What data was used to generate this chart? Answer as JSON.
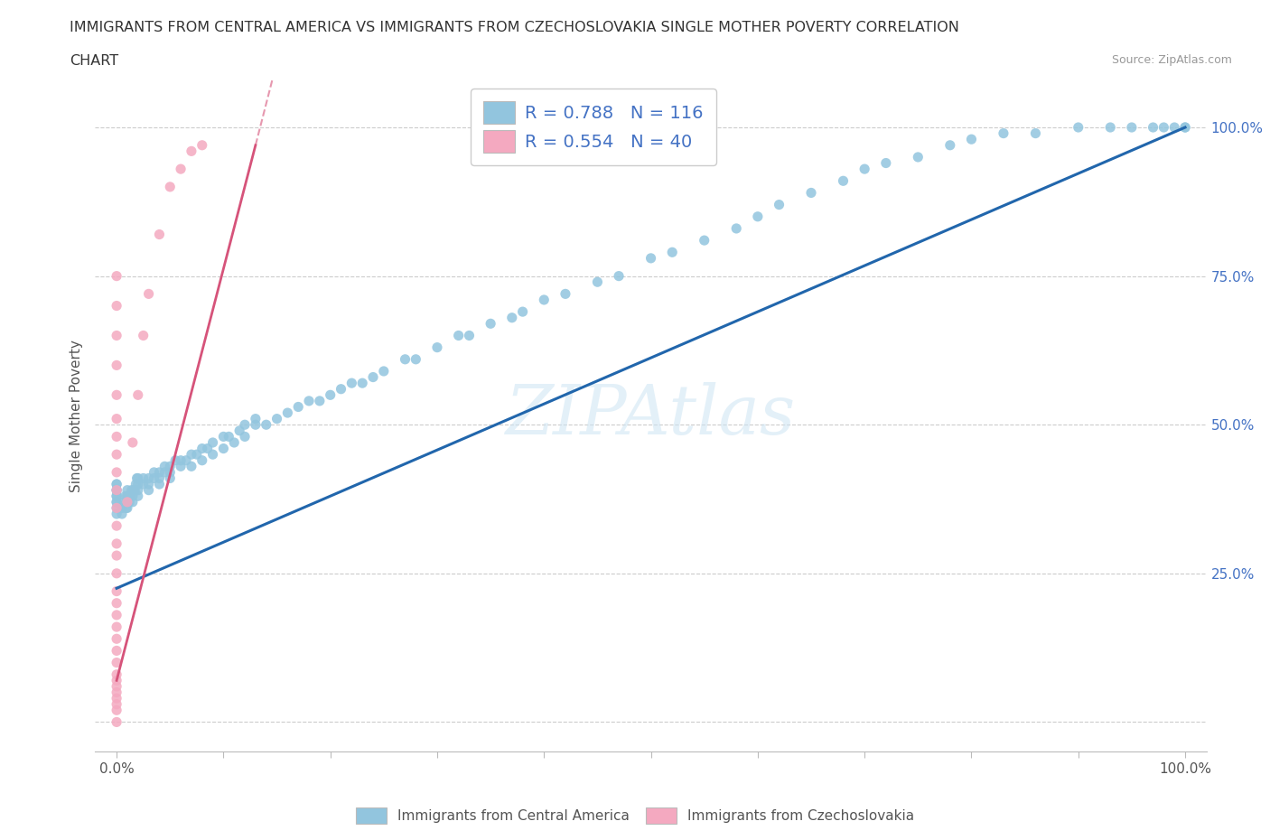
{
  "title_line1": "IMMIGRANTS FROM CENTRAL AMERICA VS IMMIGRANTS FROM CZECHOSLOVAKIA SINGLE MOTHER POVERTY CORRELATION",
  "title_line2": "CHART",
  "source": "Source: ZipAtlas.com",
  "ylabel": "Single Mother Poverty",
  "xlim": [
    -0.02,
    1.02
  ],
  "ylim": [
    -0.05,
    1.08
  ],
  "blue_color": "#92c5de",
  "pink_color": "#f4a9c0",
  "blue_line_color": "#2166ac",
  "pink_line_color": "#d6537a",
  "R_blue": 0.788,
  "N_blue": 116,
  "R_pink": 0.554,
  "N_pink": 40,
  "legend_label_blue": "Immigrants from Central America",
  "legend_label_pink": "Immigrants from Czechoslovakia",
  "watermark": "ZIPAtlas",
  "title_fontsize": 11.5,
  "axis_fontsize": 11,
  "tick_fontsize": 11,
  "blue_line_x0": 0.0,
  "blue_line_y0": 0.225,
  "blue_line_x1": 1.0,
  "blue_line_y1": 1.0,
  "pink_line_x0": 0.0,
  "pink_line_y0": 0.07,
  "pink_line_x1": 0.13,
  "pink_line_y1": 0.97,
  "blue_x": [
    0.0,
    0.0,
    0.0,
    0.0,
    0.0,
    0.0,
    0.0,
    0.0,
    0.0,
    0.0,
    0.005,
    0.005,
    0.007,
    0.008,
    0.009,
    0.01,
    0.01,
    0.01,
    0.01,
    0.01,
    0.012,
    0.013,
    0.014,
    0.015,
    0.015,
    0.016,
    0.017,
    0.018,
    0.019,
    0.02,
    0.02,
    0.02,
    0.02,
    0.025,
    0.025,
    0.03,
    0.03,
    0.03,
    0.035,
    0.035,
    0.04,
    0.04,
    0.04,
    0.045,
    0.045,
    0.05,
    0.05,
    0.05,
    0.055,
    0.06,
    0.06,
    0.065,
    0.07,
    0.07,
    0.075,
    0.08,
    0.08,
    0.085,
    0.09,
    0.09,
    0.1,
    0.1,
    0.105,
    0.11,
    0.115,
    0.12,
    0.12,
    0.13,
    0.13,
    0.14,
    0.15,
    0.16,
    0.17,
    0.18,
    0.19,
    0.2,
    0.21,
    0.22,
    0.23,
    0.24,
    0.25,
    0.27,
    0.28,
    0.3,
    0.32,
    0.33,
    0.35,
    0.37,
    0.38,
    0.4,
    0.42,
    0.45,
    0.47,
    0.5,
    0.52,
    0.55,
    0.58,
    0.6,
    0.62,
    0.65,
    0.68,
    0.7,
    0.72,
    0.75,
    0.78,
    0.8,
    0.83,
    0.86,
    0.9,
    0.93,
    0.95,
    0.97,
    0.98,
    0.99,
    1.0,
    1.0
  ],
  "blue_y": [
    0.35,
    0.36,
    0.37,
    0.37,
    0.38,
    0.38,
    0.39,
    0.39,
    0.4,
    0.4,
    0.35,
    0.36,
    0.37,
    0.38,
    0.36,
    0.37,
    0.38,
    0.38,
    0.39,
    0.36,
    0.37,
    0.38,
    0.39,
    0.37,
    0.38,
    0.39,
    0.39,
    0.4,
    0.41,
    0.38,
    0.39,
    0.4,
    0.41,
    0.4,
    0.41,
    0.39,
    0.4,
    0.41,
    0.41,
    0.42,
    0.4,
    0.41,
    0.42,
    0.42,
    0.43,
    0.41,
    0.42,
    0.43,
    0.44,
    0.43,
    0.44,
    0.44,
    0.43,
    0.45,
    0.45,
    0.44,
    0.46,
    0.46,
    0.45,
    0.47,
    0.46,
    0.48,
    0.48,
    0.47,
    0.49,
    0.48,
    0.5,
    0.5,
    0.51,
    0.5,
    0.51,
    0.52,
    0.53,
    0.54,
    0.54,
    0.55,
    0.56,
    0.57,
    0.57,
    0.58,
    0.59,
    0.61,
    0.61,
    0.63,
    0.65,
    0.65,
    0.67,
    0.68,
    0.69,
    0.71,
    0.72,
    0.74,
    0.75,
    0.78,
    0.79,
    0.81,
    0.83,
    0.85,
    0.87,
    0.89,
    0.91,
    0.93,
    0.94,
    0.95,
    0.97,
    0.98,
    0.99,
    0.99,
    1.0,
    1.0,
    1.0,
    1.0,
    1.0,
    1.0,
    1.0,
    1.0
  ],
  "pink_x": [
    0.0,
    0.0,
    0.0,
    0.0,
    0.0,
    0.0,
    0.0,
    0.0,
    0.0,
    0.0,
    0.0,
    0.0,
    0.0,
    0.0,
    0.0,
    0.0,
    0.0,
    0.0,
    0.0,
    0.0,
    0.0,
    0.0,
    0.0,
    0.0,
    0.0,
    0.0,
    0.0,
    0.0,
    0.0,
    0.0,
    0.01,
    0.015,
    0.02,
    0.025,
    0.03,
    0.04,
    0.05,
    0.06,
    0.07,
    0.08
  ],
  "pink_y": [
    0.0,
    0.02,
    0.03,
    0.04,
    0.05,
    0.06,
    0.07,
    0.08,
    0.1,
    0.12,
    0.14,
    0.16,
    0.18,
    0.2,
    0.22,
    0.25,
    0.28,
    0.3,
    0.33,
    0.36,
    0.39,
    0.42,
    0.45,
    0.48,
    0.51,
    0.55,
    0.6,
    0.65,
    0.7,
    0.75,
    0.37,
    0.47,
    0.55,
    0.65,
    0.72,
    0.82,
    0.9,
    0.93,
    0.96,
    0.97
  ]
}
